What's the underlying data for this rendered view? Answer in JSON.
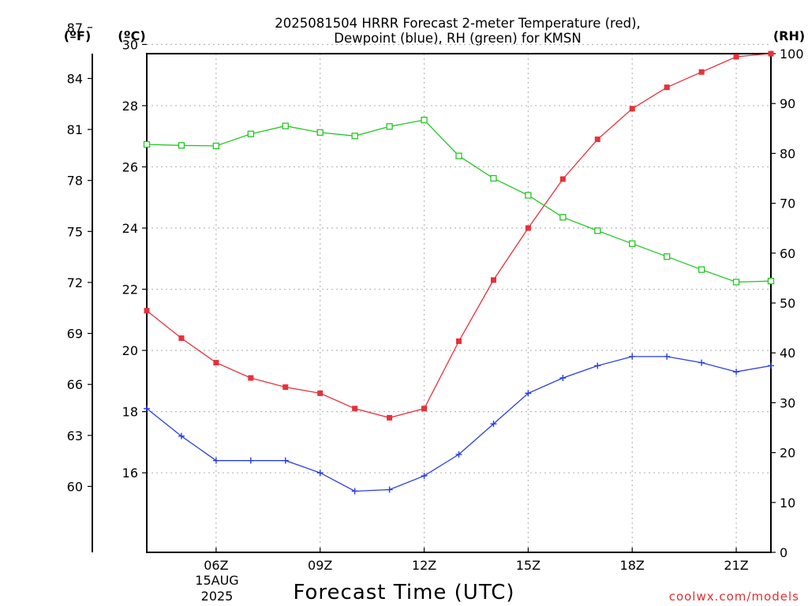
{
  "title": {
    "line1": "2025081504 HRRR Forecast 2-meter Temperature (red),",
    "line2": "Dewpoint (blue), RH (green) for KMSN"
  },
  "axis_units": {
    "fahrenheit": "(ºF)",
    "celsius": "(ºC)",
    "rh": "(RH)"
  },
  "xlabel": "Forecast Time (UTC)",
  "date_labels": [
    "15AUG",
    "2025"
  ],
  "credit": "coolwx.com/models",
  "colors": {
    "temperature": "#e8303a",
    "dewpoint": "#2a3ee0",
    "rh": "#22c822",
    "credit": "#e03030",
    "grid": "#b8b8b8"
  },
  "chart_data": {
    "type": "line",
    "x": [
      "04Z",
      "05Z",
      "06Z",
      "07Z",
      "08Z",
      "09Z",
      "10Z",
      "11Z",
      "12Z",
      "13Z",
      "14Z",
      "15Z",
      "16Z",
      "17Z",
      "18Z",
      "19Z",
      "20Z",
      "21Z",
      "22Z"
    ],
    "x_tick_labels": [
      "06Z",
      "09Z",
      "12Z",
      "15Z",
      "18Z",
      "21Z"
    ],
    "left_axis_celsius": {
      "ylim": [
        13.4,
        29.7
      ],
      "ticks": [
        16,
        18,
        20,
        22,
        24,
        26,
        28,
        30
      ]
    },
    "left_axis_fahrenheit": {
      "ticks": [
        60,
        63,
        66,
        69,
        72,
        75,
        78,
        81,
        84,
        87
      ]
    },
    "right_axis_rh": {
      "ylim": [
        0,
        100
      ],
      "ticks": [
        0,
        10,
        20,
        30,
        40,
        50,
        60,
        70,
        80,
        90,
        100
      ]
    },
    "grid": true,
    "series": [
      {
        "name": "Temperature (red)",
        "axis": "celsius",
        "marker": "filled-square",
        "values": [
          21.3,
          20.4,
          19.6,
          19.1,
          18.8,
          18.6,
          18.1,
          17.8,
          18.1,
          20.3,
          22.3,
          24.0,
          25.6,
          26.9,
          27.9,
          28.6,
          29.1,
          29.6,
          29.7
        ]
      },
      {
        "name": "Dewpoint (blue)",
        "axis": "celsius",
        "marker": "plus",
        "values": [
          18.1,
          17.2,
          16.4,
          16.4,
          16.4,
          16.0,
          15.4,
          15.45,
          15.9,
          16.6,
          17.6,
          18.6,
          19.1,
          19.5,
          19.8,
          19.8,
          19.6,
          19.3,
          19.5
        ]
      },
      {
        "name": "RH (green)",
        "axis": "rh",
        "marker": "open-square",
        "values": [
          81.8,
          81.6,
          81.5,
          83.9,
          85.5,
          84.2,
          83.5,
          85.4,
          86.7,
          79.5,
          75.0,
          71.6,
          67.2,
          64.5,
          61.9,
          59.3,
          56.7,
          54.2,
          54.4
        ]
      }
    ]
  }
}
